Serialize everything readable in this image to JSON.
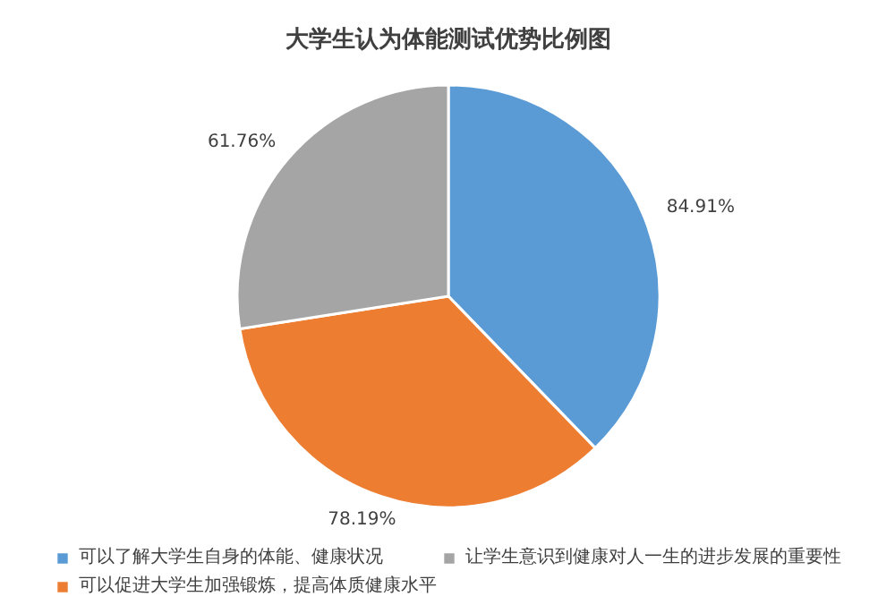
{
  "chart_data": {
    "type": "pie",
    "title": "大学生认为体能测试优势比例图",
    "categories": [
      "可以了解大学生自身的体能、健康状况",
      "可以促进大学生加强锻炼，提高体质健康水平",
      "让学生意识到健康对人一生的进步发展的重要性"
    ],
    "values": [
      84.91,
      78.19,
      61.76
    ],
    "colors": [
      "#5b9bd5",
      "#ed7d31",
      "#a5a5a5"
    ],
    "value_labels": [
      "84.91%",
      "78.19%",
      "61.76%"
    ],
    "legend": "bottom"
  }
}
